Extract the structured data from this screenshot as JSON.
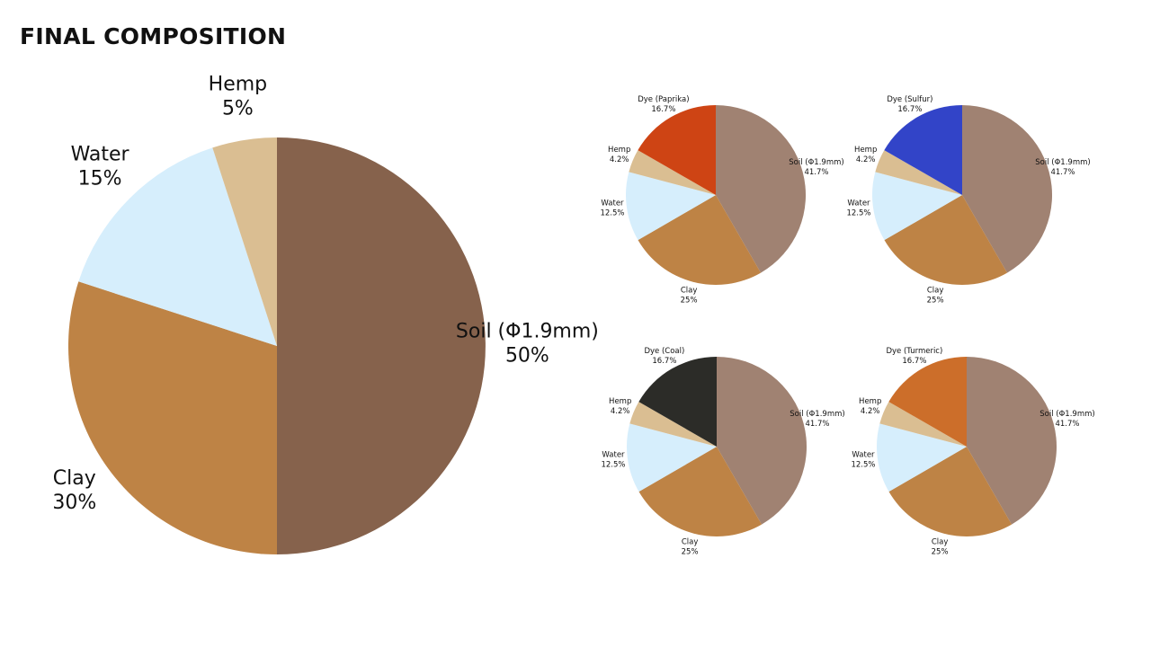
{
  "title": "FINAL COMPOSITION",
  "chart_data": [
    {
      "type": "pie",
      "slices": [
        {
          "label": "Soil (Φ1.9mm)",
          "value": 50,
          "pct_label": "50%",
          "color": "#86624C"
        },
        {
          "label": "Clay",
          "value": 30,
          "pct_label": "30%",
          "color": "#BE8345"
        },
        {
          "label": "Water",
          "value": 15,
          "pct_label": "15%",
          "color": "#D6EEFC"
        },
        {
          "label": "Hemp",
          "value": 5,
          "pct_label": "5%",
          "color": "#DABE92"
        }
      ]
    },
    {
      "type": "pie",
      "slices": [
        {
          "label": "Soil (Φ1.9mm)",
          "value": 41.7,
          "pct_label": "41.7%",
          "color": "#A08272"
        },
        {
          "label": "Clay",
          "value": 25,
          "pct_label": "25%",
          "color": "#BE8345"
        },
        {
          "label": "Water",
          "value": 12.5,
          "pct_label": "12.5%",
          "color": "#D6EEFC"
        },
        {
          "label": "Hemp",
          "value": 4.2,
          "pct_label": "4.2%",
          "color": "#DABE92"
        },
        {
          "label": "Dye (Paprika)",
          "value": 16.7,
          "pct_label": "16.7%",
          "color": "#CE4414"
        }
      ]
    },
    {
      "type": "pie",
      "slices": [
        {
          "label": "Soil (Φ1.9mm)",
          "value": 41.7,
          "pct_label": "41.7%",
          "color": "#A08272"
        },
        {
          "label": "Clay",
          "value": 25,
          "pct_label": "25%",
          "color": "#BE8345"
        },
        {
          "label": "Water",
          "value": 12.5,
          "pct_label": "12.5%",
          "color": "#D6EEFC"
        },
        {
          "label": "Hemp",
          "value": 4.2,
          "pct_label": "4.2%",
          "color": "#DABE92"
        },
        {
          "label": "Dye (Sulfur)",
          "value": 16.7,
          "pct_label": "16.7%",
          "color": "#3244C8"
        }
      ]
    },
    {
      "type": "pie",
      "slices": [
        {
          "label": "Soil (Φ1.9mm)",
          "value": 41.7,
          "pct_label": "41.7%",
          "color": "#A08272"
        },
        {
          "label": "Clay",
          "value": 25,
          "pct_label": "25%",
          "color": "#BE8345"
        },
        {
          "label": "Water",
          "value": 12.5,
          "pct_label": "12.5%",
          "color": "#D6EEFC"
        },
        {
          "label": "Hemp",
          "value": 4.2,
          "pct_label": "4.2%",
          "color": "#DABE92"
        },
        {
          "label": "Dye (Coal)",
          "value": 16.7,
          "pct_label": "16.7%",
          "color": "#2C2C28"
        }
      ]
    },
    {
      "type": "pie",
      "slices": [
        {
          "label": "Soil (Φ1.9mm)",
          "value": 41.7,
          "pct_label": "41.7%",
          "color": "#A08272"
        },
        {
          "label": "Clay",
          "value": 25,
          "pct_label": "25%",
          "color": "#BE8345"
        },
        {
          "label": "Water",
          "value": 12.5,
          "pct_label": "12.5%",
          "color": "#D6EEFC"
        },
        {
          "label": "Hemp",
          "value": 4.2,
          "pct_label": "4.2%",
          "color": "#DABE92"
        },
        {
          "label": "Dye (Turmeric)",
          "value": 16.7,
          "pct_label": "16.7%",
          "color": "#CC6E2A"
        }
      ]
    }
  ]
}
